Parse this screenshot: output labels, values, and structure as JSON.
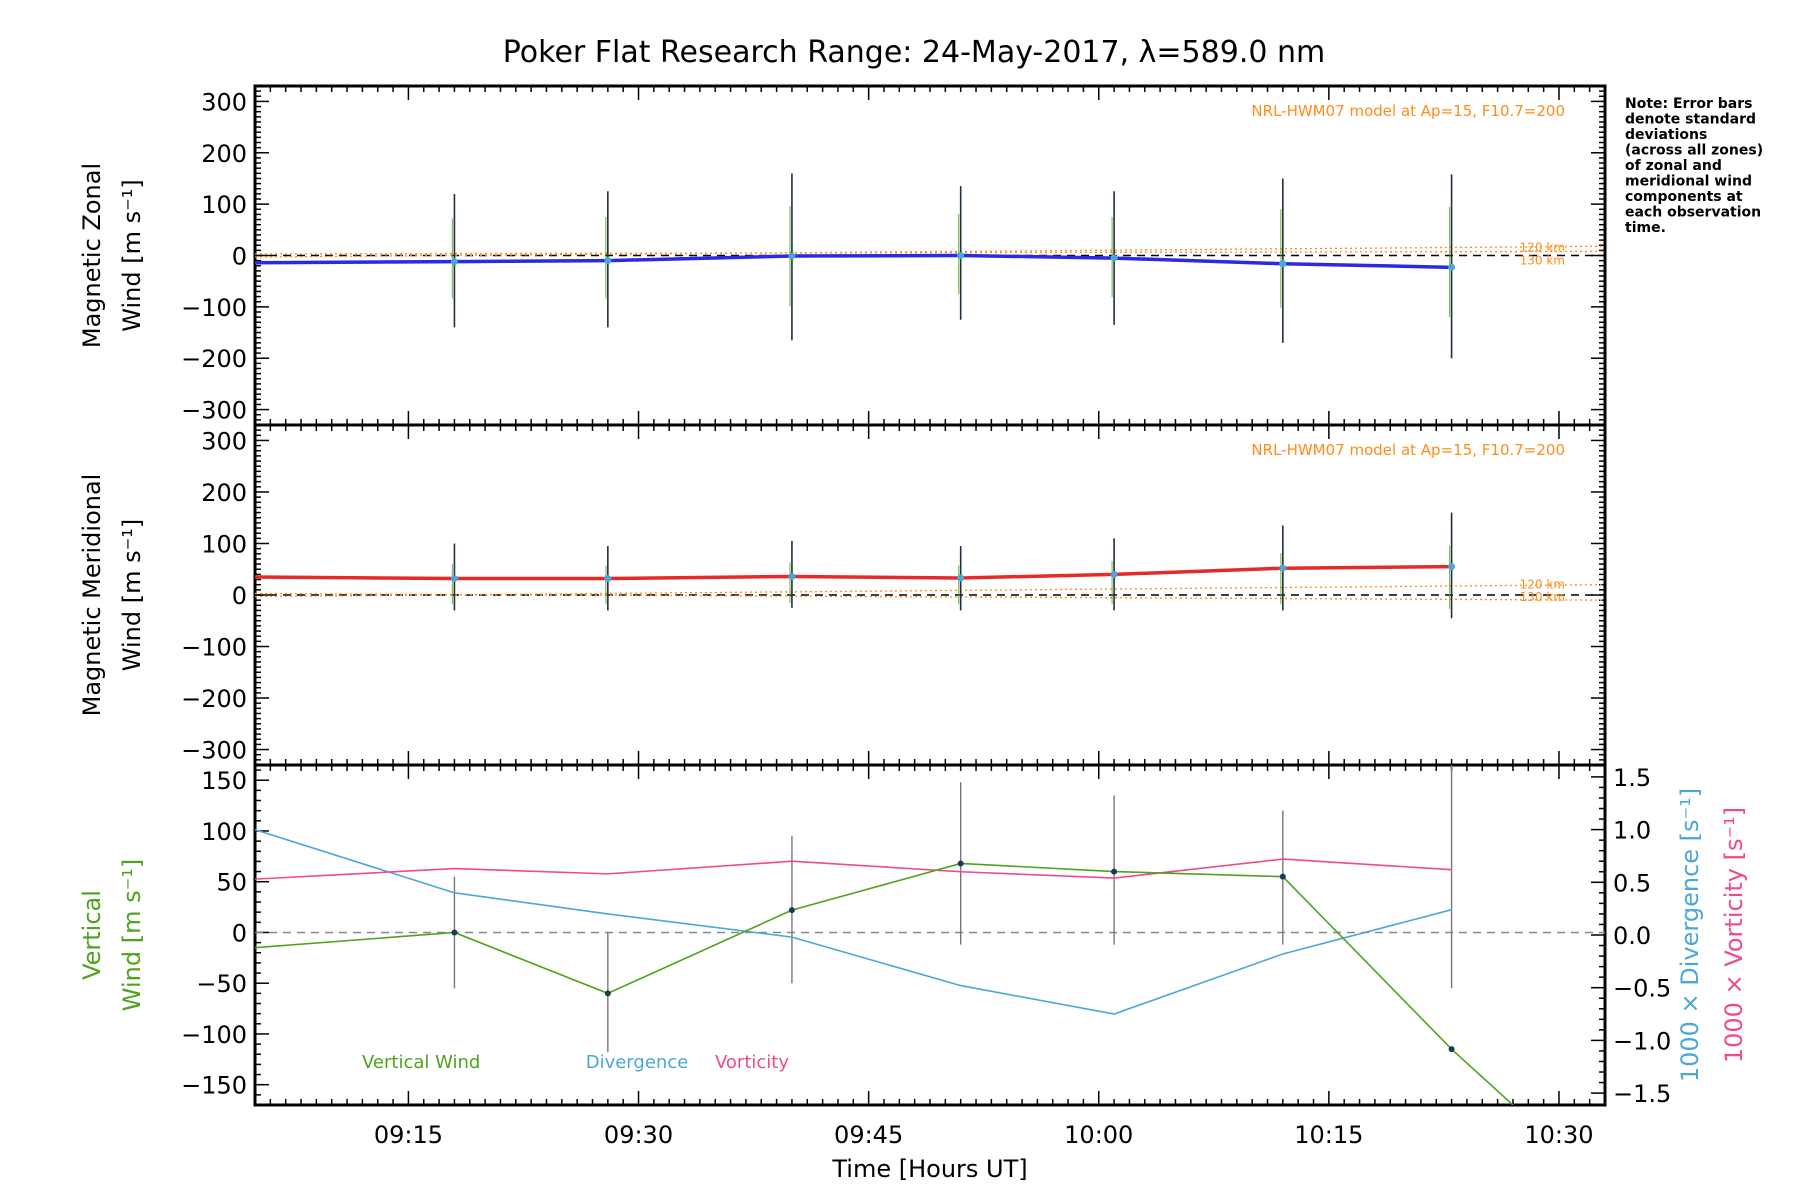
{
  "title": "Poker Flat Research Range: 24-May-2017, λ=589.0 nm",
  "note": [
    "Note: Error bars",
    "denote standard",
    "deviations",
    "(across all zones)",
    "of zonal and",
    "meridional wind",
    "components at",
    "each observation",
    "time."
  ],
  "colors": {
    "zonal": "#2a2ae6",
    "meridional": "#e62a2a",
    "vertical": "#4fa31c",
    "divergence": "#4aa8d8",
    "vorticity": "#f04a8a",
    "model": "#ff8c1a",
    "axis": "#000000"
  },
  "chart_data": [
    {
      "type": "line",
      "panel": "zonal",
      "ylabel": "Magnetic Zonal Wind [m s⁻¹]",
      "ylabel_lines": [
        "Magnetic Zonal",
        "Wind [m s⁻¹]"
      ],
      "ylim": [
        -330,
        330
      ],
      "yticks": [
        -300,
        -200,
        -100,
        0,
        100,
        200,
        300
      ],
      "xlim": [
        "09:05",
        "10:33"
      ],
      "annotation": "NRL-HWM07 model at Ap=15, F10.7=200",
      "model_labels": [
        "120 km",
        "130 km"
      ],
      "x": [
        "09:18",
        "09:28",
        "09:40",
        "09:51",
        "10:01",
        "10:12",
        "10:23"
      ],
      "series": [
        {
          "values": [
            -12,
            -10,
            -1,
            0,
            -5,
            -16,
            -23
          ],
          "err_low": [
            -140,
            -140,
            -165,
            -125,
            -135,
            -170,
            -200
          ],
          "err_high": [
            120,
            125,
            160,
            135,
            125,
            150,
            158
          ]
        }
      ],
      "line_start": [
        "09:05",
        -14
      ]
    },
    {
      "type": "line",
      "panel": "meridional",
      "ylabel": "Magnetic Meridional Wind [m s⁻¹]",
      "ylabel_lines": [
        "Magnetic Meridional",
        "Wind [m s⁻¹]"
      ],
      "ylim": [
        -330,
        330
      ],
      "yticks": [
        -300,
        -200,
        -100,
        0,
        100,
        200,
        300
      ],
      "xlim": [
        "09:05",
        "10:33"
      ],
      "annotation": "NRL-HWM07 model at Ap=15, F10.7=200",
      "model_labels": [
        "120 km",
        "130 km"
      ],
      "x": [
        "09:18",
        "09:28",
        "09:40",
        "09:51",
        "10:01",
        "10:12",
        "10:23"
      ],
      "series": [
        {
          "values": [
            32,
            32,
            36,
            33,
            40,
            52,
            55
          ],
          "err_low": [
            -30,
            -30,
            -25,
            -30,
            -30,
            -30,
            -45
          ],
          "err_high": [
            100,
            95,
            105,
            95,
            110,
            135,
            160
          ]
        }
      ],
      "line_start": [
        "09:05",
        35
      ]
    },
    {
      "type": "line",
      "panel": "vertical",
      "ylabel": "Vertical Wind [m s⁻¹]",
      "ylabel_lines": [
        "Vertical",
        "Wind [m s⁻¹]"
      ],
      "y2label_div": "1000 × Divergence [s⁻¹]",
      "y2label_vor": "1000 × Vorticity [s⁻¹]",
      "ylim": [
        -170,
        165
      ],
      "yticks": [
        -150,
        -100,
        -50,
        0,
        50,
        100,
        150
      ],
      "y2lim": [
        -1.5,
        1.5
      ],
      "y2ticks": [
        "-1.5",
        "-1.0",
        "-0.5",
        "0.0",
        "0.5",
        "1.0",
        "1.5"
      ],
      "xlabel": "Time [Hours UT]",
      "xticks": [
        "09:15",
        "09:30",
        "09:45",
        "10:00",
        "10:15",
        "10:30"
      ],
      "xlim": [
        "09:05",
        "10:33"
      ],
      "legend": [
        "Vertical Wind",
        "Divergence",
        "Vorticity"
      ],
      "series": [
        {
          "name": "Vertical Wind",
          "x": [
            "09:05",
            "09:18",
            "09:28",
            "09:40",
            "09:51",
            "10:01",
            "10:12",
            "10:23",
            "10:27"
          ],
          "values": [
            -15,
            0,
            -60,
            22,
            68,
            60,
            55,
            -115,
            -170
          ],
          "err_x": [
            "09:18",
            "09:28",
            "09:40",
            "09:51",
            "10:01",
            "10:12",
            "10:23"
          ],
          "err_low": [
            -55,
            -118,
            -50,
            -12,
            -12,
            -12,
            -55
          ],
          "err_high": [
            55,
            0,
            95,
            148,
            135,
            120,
            165
          ]
        },
        {
          "name": "Divergence",
          "x": [
            "09:05",
            "09:18",
            "09:28",
            "09:40",
            "09:51",
            "10:01",
            "10:12",
            "10:23"
          ],
          "values": [
            1.0,
            0.4,
            0.2,
            -0.02,
            -0.48,
            -0.75,
            -0.18,
            0.24
          ]
        },
        {
          "name": "Vorticity",
          "x": [
            "09:05",
            "09:18",
            "09:28",
            "09:40",
            "09:51",
            "10:01",
            "10:12",
            "10:23"
          ],
          "values": [
            0.53,
            0.63,
            0.58,
            0.7,
            0.6,
            0.54,
            0.72,
            0.62
          ]
        }
      ]
    }
  ]
}
